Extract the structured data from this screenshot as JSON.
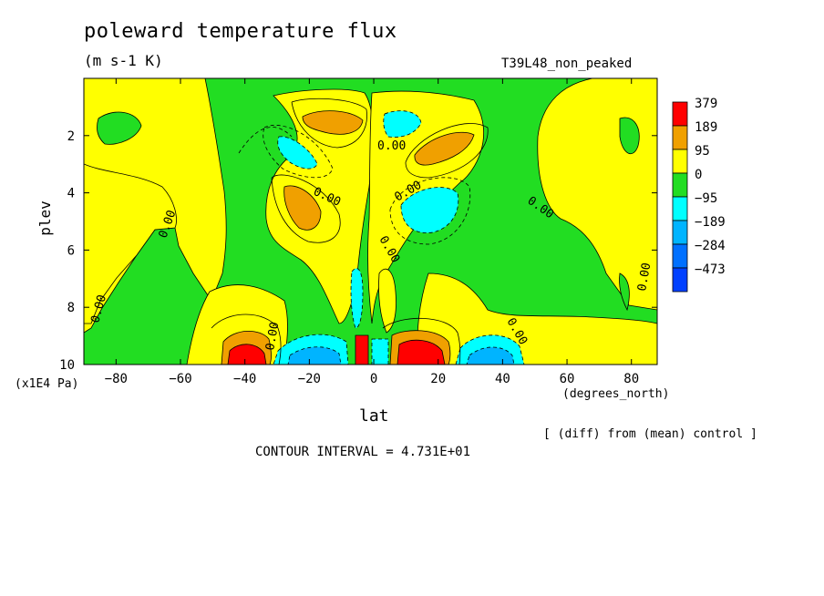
{
  "chart_data": {
    "type": "heatmap",
    "title": "poleward temperature flux",
    "units": "(m s-1 K)",
    "run_label": "T39L48_non_peaked",
    "xlabel": "lat",
    "x_units": "(degrees_north)",
    "ylabel": "plev",
    "y_units": "(x1E4 Pa)",
    "note": "[ (diff) from (mean) control ]",
    "contour_interval": "CONTOUR INTERVAL = 4.731E+01",
    "xlim": [
      -90,
      88
    ],
    "ylim": [
      10,
      0
    ],
    "x_ticks": [
      -80,
      -60,
      -40,
      -20,
      0,
      20,
      40,
      60,
      80
    ],
    "y_ticks": [
      2,
      4,
      6,
      8,
      10
    ],
    "contour_label": "0.00",
    "legend": {
      "levels": [
        "379",
        "189",
        "95",
        "0",
        "−95",
        "−189",
        "−284",
        "−473"
      ],
      "colors": [
        "#ff0000",
        "#f0a000",
        "#ffff00",
        "#22dd22",
        "#00ffff",
        "#00b4ff",
        "#0070ff",
        "#0040ff"
      ]
    },
    "colors": {
      "strong_positive": "#ff0000",
      "positive": "#f0a000",
      "weak_positive": "#ffff00",
      "weak_negative": "#22dd22",
      "negative": "#00ffff",
      "strong_negative": "#00b4ff"
    }
  }
}
